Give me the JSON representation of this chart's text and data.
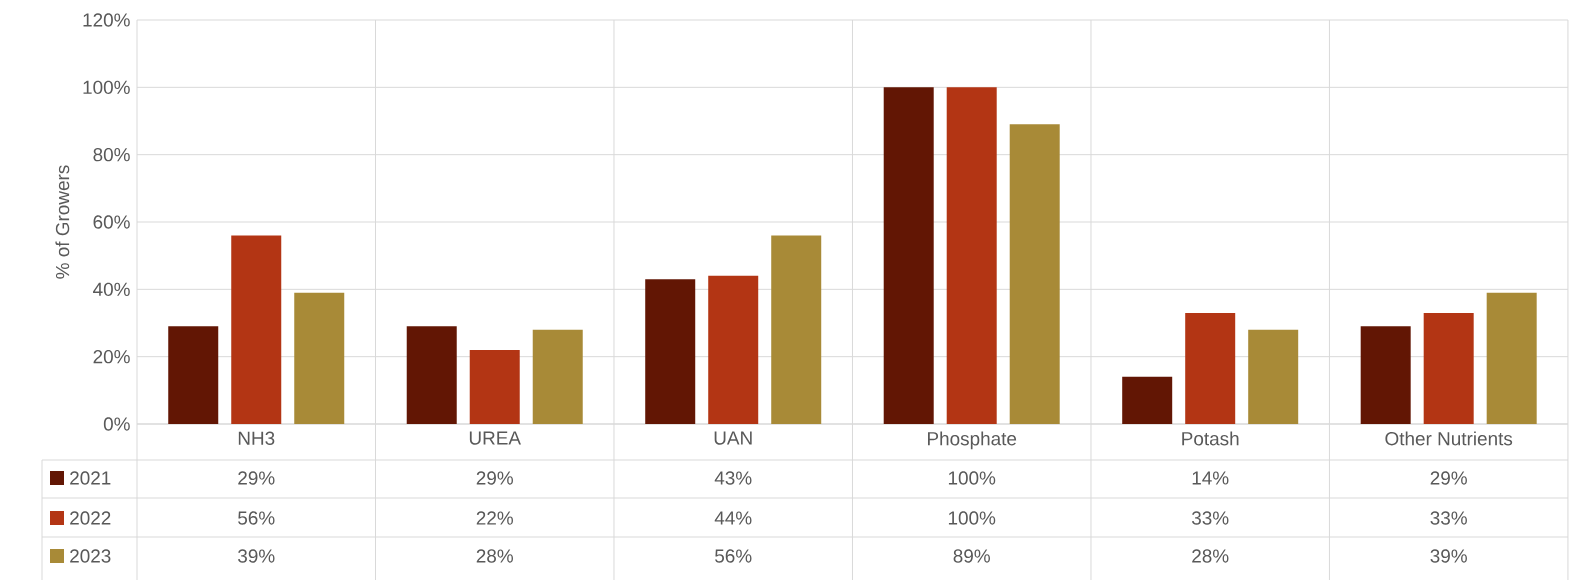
{
  "chart_data": {
    "type": "bar",
    "ylabel": "% of Growers",
    "categories": [
      "NH3",
      "UREA",
      "UAN",
      "Phosphate",
      "Potash",
      "Other Nutrients"
    ],
    "series": [
      {
        "name": "2021",
        "color": "#621604",
        "values": [
          29,
          29,
          43,
          100,
          14,
          29
        ],
        "value_labels": [
          "29%",
          "29%",
          "43%",
          "100%",
          "14%",
          "29%"
        ]
      },
      {
        "name": "2022",
        "color": "#b33514",
        "values": [
          56,
          22,
          44,
          100,
          33,
          33
        ],
        "value_labels": [
          "56%",
          "22%",
          "44%",
          "100%",
          "33%",
          "33%"
        ]
      },
      {
        "name": "2023",
        "color": "#a88a37",
        "values": [
          39,
          28,
          56,
          89,
          28,
          39
        ],
        "value_labels": [
          "39%",
          "28%",
          "56%",
          "89%",
          "28%",
          "39%"
        ]
      }
    ],
    "ylim": [
      0,
      120
    ],
    "yticks": [
      {
        "value": 0,
        "label": "0%"
      },
      {
        "value": 20,
        "label": "20%"
      },
      {
        "value": 40,
        "label": "40%"
      },
      {
        "value": 60,
        "label": "60%"
      },
      {
        "value": 80,
        "label": "80%"
      },
      {
        "value": 100,
        "label": "100%"
      },
      {
        "value": 120,
        "label": "120%"
      }
    ],
    "grid": true,
    "legend": "bottom left"
  }
}
